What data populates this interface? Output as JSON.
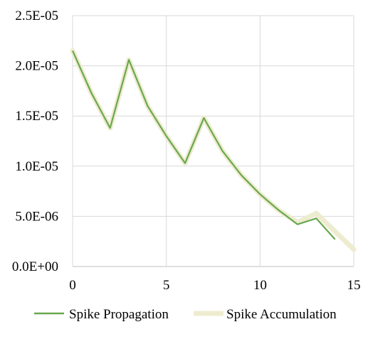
{
  "chart_data": {
    "type": "line",
    "title": "",
    "xlabel": "",
    "ylabel": "",
    "xlim": [
      0,
      15
    ],
    "ylim": [
      0,
      2.5e-05
    ],
    "x_ticks": [
      0,
      5,
      10,
      15
    ],
    "x_tick_labels": [
      "0",
      "5",
      "10",
      "15"
    ],
    "y_ticks": [
      0,
      5e-06,
      1e-05,
      1.5e-05,
      2e-05,
      2.5e-05
    ],
    "y_tick_labels": [
      "0.0E+00",
      "5.0E-06",
      "1.0E-05",
      "1.5E-05",
      "2.0E-05",
      "2.5E-05"
    ],
    "grid": true,
    "legend_position": "bottom",
    "series": [
      {
        "name": "Spike Propagation",
        "color": "#6aa84f",
        "x": [
          0,
          1,
          2,
          3,
          4,
          5,
          6,
          7,
          8,
          9,
          10,
          11,
          12,
          13,
          14
        ],
        "values": [
          2.15e-05,
          1.73e-05,
          1.38e-05,
          2.06e-05,
          1.6e-05,
          1.3e-05,
          1.03e-05,
          1.48e-05,
          1.15e-05,
          9.1e-06,
          7.2e-06,
          5.6e-06,
          4.2e-06,
          4.8e-06,
          2.7e-06
        ]
      },
      {
        "name": "Spike Accumulation",
        "color": "#eeecd0",
        "x": [
          0,
          1,
          2,
          3,
          4,
          5,
          6,
          7,
          8,
          9,
          10,
          11,
          12,
          13,
          14,
          15
        ],
        "values": [
          2.15e-05,
          1.73e-05,
          1.38e-05,
          2.06e-05,
          1.6e-05,
          1.3e-05,
          1.03e-05,
          1.48e-05,
          1.15e-05,
          9.1e-06,
          7.2e-06,
          5.6e-06,
          4.4e-06,
          5.3e-06,
          3.5e-06,
          1.7e-06
        ]
      }
    ]
  }
}
